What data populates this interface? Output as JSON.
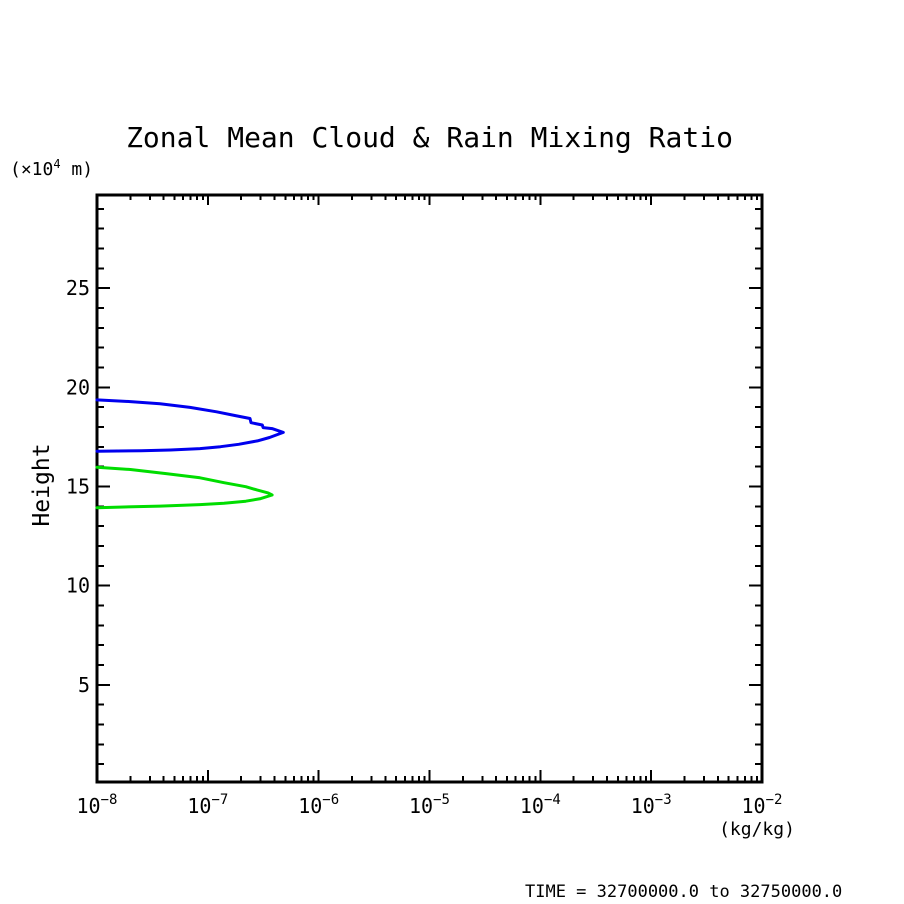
{
  "title": "Zonal Mean Cloud & Rain Mixing Ratio",
  "labels": {
    "y_unit_prefix": "(×10",
    "y_unit_exp": "4",
    "y_unit_suffix": " m)",
    "y_axis": "Height",
    "x_unit": "(kg/kg)",
    "time": "TIME = 32700000.0 to 32750000.0"
  },
  "chart_data": {
    "type": "line",
    "title": "Zonal Mean Cloud & Rain Mixing Ratio",
    "xlabel": "(kg/kg)",
    "ylabel": "Height (×10^4 m)",
    "x_scale": "log",
    "xlim": [
      1e-08,
      0.01
    ],
    "ylim": [
      0.1,
      29.7
    ],
    "x_tick_exponents": [
      -8,
      -7,
      -6,
      -5,
      -4,
      -3,
      -2
    ],
    "x_tick_base": "10",
    "y_major_ticks": [
      5,
      10,
      15,
      20,
      25
    ],
    "y_minor_step": 1,
    "grid": false,
    "legend": "none",
    "axis_color": "#000000",
    "series": [
      {
        "name": "cloud-mixing-ratio-contour",
        "color": "#0000ee",
        "points": [
          [
            1e-08,
            19.37
          ],
          [
            2e-08,
            19.28
          ],
          [
            3.7e-08,
            19.17
          ],
          [
            6.9e-08,
            18.99
          ],
          [
            1.2e-07,
            18.77
          ],
          [
            1.75e-07,
            18.58
          ],
          [
            2.4e-07,
            18.43
          ],
          [
            2.45e-07,
            18.22
          ],
          [
            3.1e-07,
            18.1
          ],
          [
            3.15e-07,
            17.97
          ],
          [
            3.8e-07,
            17.92
          ],
          [
            4.8e-07,
            17.73
          ],
          [
            3.6e-07,
            17.47
          ],
          [
            2.8e-07,
            17.3
          ],
          [
            1.9e-07,
            17.13
          ],
          [
            1.3e-07,
            17.01
          ],
          [
            8.5e-08,
            16.91
          ],
          [
            4.6e-08,
            16.84
          ],
          [
            2.5e-08,
            16.8
          ],
          [
            1e-08,
            16.78
          ]
        ]
      },
      {
        "name": "rain-mixing-ratio-contour",
        "color": "#00dd00",
        "points": [
          [
            1e-08,
            15.97
          ],
          [
            2e-08,
            15.86
          ],
          [
            4.2e-08,
            15.65
          ],
          [
            8.5e-08,
            15.44
          ],
          [
            1.4e-07,
            15.19
          ],
          [
            2.2e-07,
            14.99
          ],
          [
            2.8e-07,
            14.82
          ],
          [
            3.5e-07,
            14.68
          ],
          [
            3.8e-07,
            14.57
          ],
          [
            3e-07,
            14.39
          ],
          [
            2.2e-07,
            14.26
          ],
          [
            1.4e-07,
            14.16
          ],
          [
            8.5e-08,
            14.09
          ],
          [
            3.7e-08,
            14.01
          ],
          [
            1.6e-08,
            13.96
          ],
          [
            1e-08,
            13.93
          ]
        ]
      }
    ]
  }
}
